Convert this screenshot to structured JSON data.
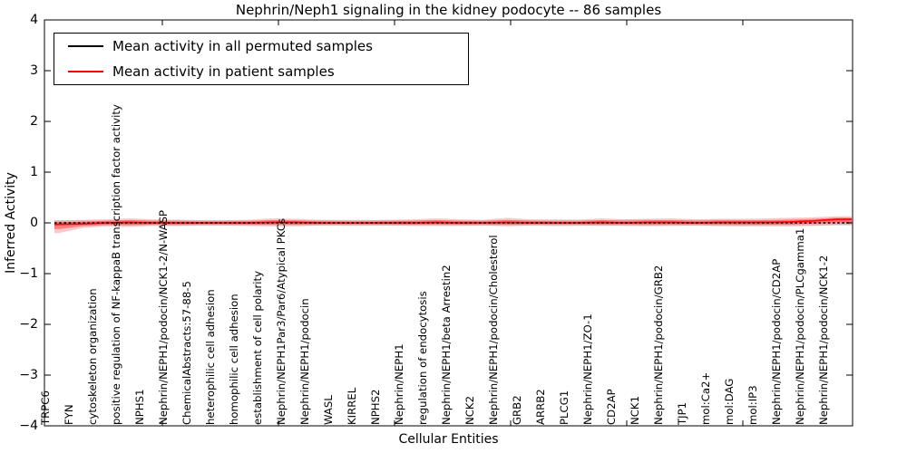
{
  "title": "Nephrin/Neph1 signaling in the kidney podocyte -- 86 samples",
  "chart_data": {
    "type": "line",
    "title": "Nephrin/Neph1 signaling in the kidney podocyte -- 86 samples",
    "xlabel": "Cellular Entities",
    "ylabel": "Inferred Activity",
    "ylim": [
      -4,
      4
    ],
    "yticks": [
      "4",
      "3",
      "2",
      "1",
      "0",
      "−1",
      "−2",
      "−3",
      "−4"
    ],
    "grid": false,
    "legend_position": "upper left",
    "categories": [
      "TRPC6",
      "FYN",
      "cytoskeleton organization",
      "positive regulation of NF-kappaB transcription factor activity",
      "NPHS1",
      "Nephrin/NEPH1/podocin/NCK1-2/N-WASP",
      "ChemicalAbstracts:57-88-5",
      "heterophilic cell adhesion",
      "homophilic cell adhesion",
      "establishment of cell polarity",
      "Nephrin/NEPH1Par3/Par6/Atypical PKCs",
      "Nephrin/NEPH1/podocin",
      "WASL",
      "KIRREL",
      "NPHS2",
      "Nephrin/NEPH1",
      "regulation of endocytosis",
      "Nephrin/NEPH1/beta Arrestin2",
      "NCK2",
      "Nephrin/NEPH1/podocin/Cholesterol",
      "GRB2",
      "ARRB2",
      "PLCG1",
      "Nephrin/NEPH1/ZO-1",
      "CD2AP",
      "NCK1",
      "Nephrin/NEPH1/podocin/GRB2",
      "TJP1",
      "mol:Ca2+",
      "mol:DAG",
      "mol:IP3",
      "Nephrin/NEPH1/podocin/CD2AP",
      "Nephrin/NEPH1/podocin/PLCgamma1",
      "Nephrin/NEPH1/podocin/NCK1-2"
    ],
    "series": [
      {
        "name": "Mean activity in all permuted samples",
        "color": "#000000",
        "style": "dotted",
        "values": [
          0,
          0,
          0,
          0,
          0,
          0,
          0,
          0,
          0,
          0,
          0,
          0,
          0,
          0,
          0,
          0,
          0,
          0,
          0,
          0,
          0,
          0,
          0,
          0,
          0,
          0,
          0,
          0,
          0,
          0,
          0,
          0,
          0,
          0
        ]
      },
      {
        "name": "Mean activity in patient samples",
        "color": "#ff0000",
        "style": "solid",
        "values": [
          -0.03,
          -0.02,
          0,
          0.01,
          0,
          0,
          0,
          0,
          0,
          0.01,
          0.01,
          0,
          0,
          0,
          0,
          0,
          0.01,
          0,
          0,
          0.01,
          0,
          0,
          0,
          0.01,
          0,
          0.01,
          0.01,
          0,
          0.01,
          0.01,
          0.01,
          0.02,
          0.04,
          0.07
        ]
      }
    ],
    "bands": [
      {
        "name": "permuted samples range",
        "color": "rgba(0,0,0,0.13)",
        "upper": [
          0.05,
          0.05,
          0.05,
          0.055,
          0.05,
          0.06,
          0.055,
          0.055,
          0.05,
          0.05,
          0.05,
          0.055,
          0.06,
          0.06,
          0.055,
          0.05,
          0.05,
          0.05,
          0.055,
          0.05,
          0.055,
          0.065,
          0.06,
          0.05,
          0.065,
          0.06,
          0.05,
          0.06,
          0.06,
          0.055,
          0.05,
          0.05,
          0.05,
          0.05
        ],
        "lower": [
          -0.05,
          -0.05,
          -0.05,
          -0.055,
          -0.05,
          -0.06,
          -0.055,
          -0.055,
          -0.05,
          -0.05,
          -0.05,
          -0.055,
          -0.06,
          -0.06,
          -0.055,
          -0.05,
          -0.05,
          -0.05,
          -0.055,
          -0.05,
          -0.055,
          -0.065,
          -0.06,
          -0.05,
          -0.065,
          -0.06,
          -0.05,
          -0.06,
          -0.06,
          -0.055,
          -0.05,
          -0.05,
          -0.05,
          -0.05
        ]
      },
      {
        "name": "patient samples range",
        "color": "rgba(255,0,0,0.22)",
        "upper": [
          0.05,
          0.06,
          0.07,
          0.09,
          0.07,
          0.06,
          0.05,
          0.05,
          0.06,
          0.09,
          0.08,
          0.06,
          0.05,
          0.05,
          0.06,
          0.07,
          0.09,
          0.07,
          0.06,
          0.1,
          0.07,
          0.06,
          0.06,
          0.09,
          0.07,
          0.08,
          0.09,
          0.07,
          0.08,
          0.08,
          0.09,
          0.1,
          0.11,
          0.13
        ],
        "lower": [
          -0.2,
          -0.1,
          -0.07,
          -0.08,
          -0.06,
          -0.06,
          -0.05,
          -0.05,
          -0.06,
          -0.07,
          -0.07,
          -0.05,
          -0.05,
          -0.05,
          -0.05,
          -0.06,
          -0.06,
          -0.06,
          -0.05,
          -0.07,
          -0.05,
          -0.05,
          -0.05,
          -0.06,
          -0.05,
          -0.06,
          -0.06,
          -0.05,
          -0.06,
          -0.07,
          -0.07,
          -0.07,
          -0.06,
          -0.04
        ]
      }
    ]
  }
}
